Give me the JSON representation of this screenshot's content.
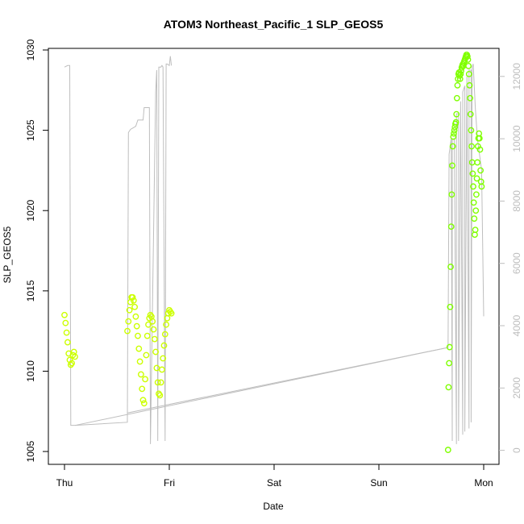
{
  "chart_data": {
    "type": "scatter",
    "title": "ATOM3 Northeast_Pacific_1 SLP_GEOS5",
    "xlabel": "Date",
    "ylabel": "SLP_GEOS5",
    "x_ticks": [
      "Thu",
      "Fri",
      "Sat",
      "Sun",
      "Mon"
    ],
    "xlim": [
      0,
      4.1
    ],
    "ylim": [
      1004.2,
      1030.1
    ],
    "y_ticks": [
      1005,
      1010,
      1015,
      1020,
      1025,
      1030
    ],
    "y2lim": [
      -450,
      12900
    ],
    "y2_ticks": [
      0,
      2000,
      4000,
      6000,
      8000,
      10000,
      12000
    ],
    "colors": {
      "line": "#bebebe",
      "marker_early": "#ccff00",
      "marker_late": "#7fff00"
    },
    "series": [
      {
        "kind": "points",
        "color": "#ccff00",
        "x": [
          0.0,
          0.01,
          0.02,
          0.03,
          0.04,
          0.05,
          0.06,
          0.07,
          0.08,
          0.09,
          0.1
        ],
        "y": [
          1013.5,
          1013.0,
          1012.4,
          1011.8,
          1011.1,
          1010.7,
          1010.4,
          1010.5,
          1011.0,
          1011.2,
          1010.9
        ]
      },
      {
        "kind": "points",
        "color": "#ccff00",
        "x": [
          0.6,
          0.61,
          0.62,
          0.63,
          0.64,
          0.65,
          0.66,
          0.67,
          0.68,
          0.69,
          0.7,
          0.71,
          0.72,
          0.73,
          0.74,
          0.75,
          0.76,
          0.77,
          0.78,
          0.79,
          0.8,
          0.81,
          0.82,
          0.83,
          0.84,
          0.85,
          0.86,
          0.87,
          0.88,
          0.89,
          0.9,
          0.91,
          0.92,
          0.93,
          0.94,
          0.95,
          0.96,
          0.97,
          0.98,
          0.99,
          1.0,
          1.01,
          1.02
        ],
        "y": [
          1012.5,
          1013.1,
          1013.8,
          1014.3,
          1014.6,
          1014.6,
          1014.4,
          1014.0,
          1013.4,
          1012.8,
          1012.2,
          1011.4,
          1010.6,
          1009.8,
          1008.9,
          1008.2,
          1008.0,
          1009.5,
          1011.0,
          1012.2,
          1012.9,
          1013.3,
          1013.5,
          1013.4,
          1013.1,
          1012.6,
          1012.0,
          1011.2,
          1010.2,
          1009.3,
          1008.6,
          1008.5,
          1009.3,
          1010.1,
          1010.8,
          1011.6,
          1012.3,
          1012.9,
          1013.3,
          1013.6,
          1013.8,
          1013.7,
          1013.6
        ]
      },
      {
        "kind": "points",
        "color": "#7fff00",
        "x": [
          3.66,
          3.665,
          3.67,
          3.675,
          3.68,
          3.685,
          3.69,
          3.695,
          3.7,
          3.705,
          3.71,
          3.715,
          3.72,
          3.725,
          3.73,
          3.735,
          3.74,
          3.745,
          3.75,
          3.755,
          3.76,
          3.765,
          3.77,
          3.775,
          3.78,
          3.785,
          3.79,
          3.795,
          3.8,
          3.805,
          3.81,
          3.815,
          3.82,
          3.825,
          3.83,
          3.835,
          3.84,
          3.845,
          3.85,
          3.855,
          3.86,
          3.865,
          3.87,
          3.875,
          3.88,
          3.885,
          3.89,
          3.895,
          3.9,
          3.905,
          3.91,
          3.915,
          3.92,
          3.925,
          3.93,
          3.935,
          3.94,
          3.945,
          3.95,
          3.955,
          3.96,
          3.965,
          3.97,
          3.975,
          3.98
        ],
        "y": [
          1005.1,
          1009.0,
          1010.5,
          1011.5,
          1014.0,
          1016.5,
          1019.0,
          1021.0,
          1022.8,
          1024.0,
          1024.6,
          1024.8,
          1025.0,
          1025.2,
          1025.4,
          1025.5,
          1026.0,
          1027.0,
          1027.8,
          1028.2,
          1028.5,
          1028.6,
          1028.4,
          1028.2,
          1028.5,
          1028.7,
          1028.9,
          1029.0,
          1029.1,
          1029.0,
          1029.2,
          1029.3,
          1029.4,
          1029.5,
          1029.6,
          1029.7,
          1029.7,
          1029.6,
          1029.4,
          1029.0,
          1028.5,
          1027.8,
          1027.0,
          1026.0,
          1025.0,
          1024.0,
          1023.0,
          1022.3,
          1021.5,
          1020.5,
          1019.5,
          1018.5,
          1018.8,
          1020.0,
          1021.0,
          1022.0,
          1023.0,
          1024.0,
          1024.5,
          1024.8,
          1024.5,
          1023.8,
          1022.5,
          1021.8,
          1021.5
        ]
      },
      {
        "kind": "line",
        "color": "#bebebe",
        "axis": "right",
        "x": [
          0.0,
          0.03,
          0.05,
          0.06,
          0.1,
          3.66,
          3.67,
          3.69,
          3.7,
          3.7,
          3.72,
          3.74,
          3.74,
          3.76,
          3.76,
          3.78,
          3.78,
          3.8,
          3.8,
          3.82,
          3.82,
          3.84,
          3.84,
          3.86,
          3.86,
          3.88,
          3.88,
          3.89,
          3.9,
          3.92,
          3.94,
          3.96,
          3.98,
          4.0
        ],
        "y": [
          12300,
          12350,
          12350,
          800,
          800,
          3300,
          9500,
          10000,
          300,
          10000,
          10000,
          200,
          10800,
          10800,
          300,
          11200,
          11200,
          500,
          11500,
          11700,
          600,
          12000,
          12000,
          700,
          12200,
          12200,
          900,
          12300,
          12400,
          11000,
          10000,
          9500,
          9000,
          4300
        ]
      },
      {
        "kind": "line",
        "color": "#bebebe",
        "axis": "right",
        "x": [
          0.1,
          0.6,
          0.6,
          0.61,
          0.63,
          0.68,
          0.69,
          0.7,
          0.75,
          0.76,
          0.77,
          0.79,
          0.8,
          0.81,
          0.82,
          0.87,
          0.88,
          0.89,
          0.9,
          0.92,
          0.93,
          0.94,
          0.96,
          0.97,
          0.98,
          1.0,
          1.01,
          1.02
        ],
        "y": [
          800,
          900,
          900,
          10200,
          10300,
          10400,
          10500,
          10600,
          10600,
          11000,
          11000,
          11000,
          11000,
          11000,
          200,
          11500,
          12200,
          300,
          12300,
          12300,
          12350,
          12300,
          300,
          12400,
          12400,
          12350,
          12650,
          12350
        ]
      },
      {
        "kind": "line",
        "color": "#bebebe",
        "axis": "right",
        "x": [
          0.6,
          3.66
        ],
        "y": [
          1200,
          3300
        ]
      }
    ]
  }
}
